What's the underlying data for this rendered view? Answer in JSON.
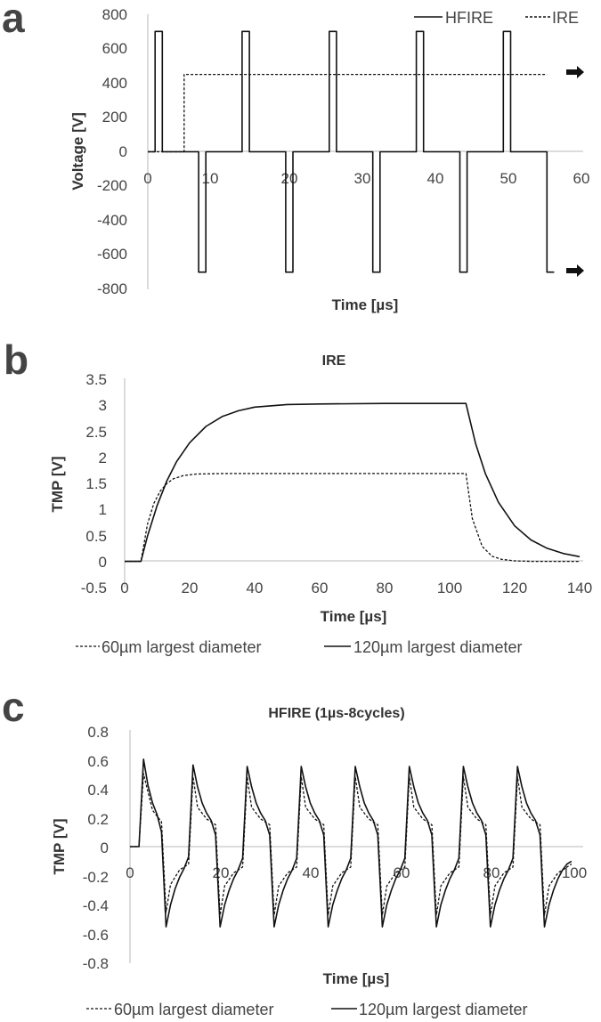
{
  "chart_data": [
    {
      "panel_label": "a",
      "type": "line",
      "title": "",
      "xlabel": "Time [µs]",
      "ylabel": "Voltage [V]",
      "xlim": [
        0,
        60
      ],
      "ylim": [
        -800,
        800
      ],
      "xticks": [
        0,
        10,
        20,
        30,
        40,
        50,
        60
      ],
      "yticks": [
        -800,
        -600,
        -400,
        -200,
        0,
        200,
        400,
        600,
        800
      ],
      "legend_position": "top-right",
      "series": [
        {
          "name": "HFIRE",
          "style": "solid",
          "x": [
            0,
            1,
            1,
            2,
            2,
            7,
            7,
            8,
            8,
            13,
            13,
            14,
            14,
            19,
            19,
            20,
            20,
            25,
            25,
            26,
            26,
            31,
            31,
            32,
            32,
            37,
            37,
            38,
            38,
            43,
            43,
            44,
            44,
            49,
            49,
            50,
            50,
            55,
            55,
            56
          ],
          "y": [
            0,
            0,
            700,
            700,
            0,
            0,
            -700,
            -700,
            0,
            0,
            700,
            700,
            0,
            0,
            -700,
            -700,
            0,
            0,
            700,
            700,
            0,
            0,
            -700,
            -700,
            0,
            0,
            700,
            700,
            0,
            0,
            -700,
            -700,
            0,
            0,
            700,
            700,
            0,
            0,
            -700,
            -700
          ]
        },
        {
          "name": "IRE",
          "style": "dashed",
          "x": [
            0,
            5,
            5,
            55
          ],
          "y": [
            0,
            0,
            450,
            450
          ]
        }
      ],
      "markers": [
        {
          "name": "right-arrow",
          "y": 450
        },
        {
          "name": "right-arrow",
          "y": -700
        }
      ]
    },
    {
      "panel_label": "b",
      "type": "line",
      "title": "IRE",
      "xlabel": "Time [µs]",
      "ylabel": "TMP [V]",
      "xlim": [
        0,
        140
      ],
      "ylim": [
        -0.5,
        3.5
      ],
      "xticks": [
        0,
        20,
        40,
        60,
        80,
        100,
        120,
        140
      ],
      "yticks": [
        -0.5,
        0,
        0.5,
        1,
        1.5,
        2,
        2.5,
        3,
        3.5
      ],
      "legend_position": "bottom",
      "series": [
        {
          "name": "60µm largest diameter",
          "style": "dashed",
          "x": [
            0,
            5,
            7,
            9,
            11,
            13,
            15,
            18,
            22,
            30,
            50,
            80,
            105,
            107,
            110,
            113,
            116,
            120,
            125,
            140
          ],
          "y": [
            0,
            0,
            0.71,
            1.11,
            1.35,
            1.49,
            1.58,
            1.64,
            1.67,
            1.68,
            1.68,
            1.68,
            1.68,
            0.82,
            0.29,
            0.1,
            0.04,
            0.01,
            0,
            0
          ]
        },
        {
          "name": "120µm largest diameter",
          "style": "solid",
          "x": [
            0,
            5,
            7,
            10,
            13,
            16,
            20,
            25,
            30,
            35,
            40,
            50,
            60,
            80,
            105,
            108,
            111,
            115,
            120,
            125,
            130,
            135,
            140
          ],
          "y": [
            0,
            0,
            0.48,
            1.07,
            1.54,
            1.91,
            2.27,
            2.58,
            2.77,
            2.88,
            2.95,
            3.0,
            3.01,
            3.02,
            3.02,
            2.25,
            1.68,
            1.13,
            0.68,
            0.41,
            0.25,
            0.15,
            0.09
          ]
        }
      ]
    },
    {
      "panel_label": "c",
      "type": "line",
      "title": "HFIRE (1µs-8cycles)",
      "xlabel": "Time [µs]",
      "ylabel": "TMP [V]",
      "xlim": [
        0,
        100
      ],
      "ylim": [
        -0.8,
        0.8
      ],
      "xticks": [
        0,
        20,
        40,
        60,
        80,
        100
      ],
      "yticks": [
        -0.8,
        -0.6,
        -0.4,
        -0.2,
        0,
        0.2,
        0.4,
        0.6,
        0.8
      ],
      "legend_position": "bottom",
      "pulse_period": 12,
      "cycles": 8,
      "series": [
        {
          "name": "60µm largest diameter",
          "style": "dashed",
          "x": [
            0,
            2,
            3,
            5,
            7,
            8,
            9,
            11,
            13,
            14,
            15,
            17,
            19,
            20,
            21,
            23,
            25,
            26,
            27,
            29,
            31,
            32,
            33,
            35,
            37,
            38,
            39,
            41,
            43,
            44,
            45,
            47,
            49,
            50,
            51,
            53,
            55,
            56,
            57,
            59,
            61,
            62,
            63,
            65,
            67,
            68,
            69,
            71,
            73,
            74,
            75,
            77,
            79,
            80,
            81,
            83,
            85,
            86,
            87,
            89,
            91,
            92,
            93,
            95,
            97,
            98
          ],
          "y": [
            0,
            0,
            0.5,
            0.25,
            0.17,
            -0.45,
            -0.26,
            -0.16,
            -0.12,
            0.48,
            0.27,
            0.19,
            0.15,
            -0.47,
            -0.27,
            -0.18,
            -0.14,
            0.48,
            0.27,
            0.19,
            0.15,
            -0.47,
            -0.27,
            -0.18,
            -0.14,
            0.48,
            0.27,
            0.19,
            0.15,
            -0.47,
            -0.27,
            -0.18,
            -0.14,
            0.48,
            0.27,
            0.19,
            0.15,
            -0.47,
            -0.27,
            -0.18,
            -0.14,
            0.48,
            0.27,
            0.19,
            0.15,
            -0.47,
            -0.27,
            -0.18,
            -0.14,
            0.48,
            0.27,
            0.19,
            0.15,
            -0.47,
            -0.27,
            -0.18,
            -0.14,
            0.48,
            0.27,
            0.19,
            0.15,
            -0.47,
            -0.27,
            -0.18,
            -0.14,
            -0.12
          ]
        },
        {
          "name": "120µm largest diameter",
          "style": "solid",
          "x": [
            0,
            2,
            3,
            4,
            5,
            6,
            7,
            8,
            9,
            10,
            11,
            12,
            13,
            14,
            15,
            16,
            17,
            18,
            19,
            20,
            21,
            22,
            23,
            24,
            25,
            26,
            27,
            28,
            29,
            30,
            31,
            32,
            33,
            34,
            35,
            36,
            37,
            38,
            39,
            40,
            41,
            42,
            43,
            44,
            45,
            46,
            47,
            48,
            49,
            50,
            51,
            52,
            53,
            54,
            55,
            56,
            57,
            58,
            59,
            60,
            61,
            62,
            63,
            64,
            65,
            66,
            67,
            68,
            69,
            70,
            71,
            72,
            73,
            74,
            75,
            76,
            77,
            78,
            79,
            80,
            81,
            82,
            83,
            84,
            85,
            86,
            87,
            88,
            89,
            90,
            91,
            92,
            93,
            94,
            95,
            96,
            97,
            98
          ],
          "y": [
            0,
            0,
            0.6,
            0.42,
            0.3,
            0.22,
            0.1,
            -0.55,
            -0.4,
            -0.29,
            -0.21,
            -0.15,
            -0.07,
            0.56,
            0.41,
            0.3,
            0.23,
            0.18,
            0.08,
            -0.55,
            -0.4,
            -0.3,
            -0.22,
            -0.16,
            -0.08,
            0.55,
            0.41,
            0.3,
            0.23,
            0.18,
            0.08,
            -0.55,
            -0.4,
            -0.3,
            -0.22,
            -0.16,
            -0.08,
            0.55,
            0.41,
            0.3,
            0.23,
            0.18,
            0.08,
            -0.55,
            -0.4,
            -0.3,
            -0.22,
            -0.16,
            -0.08,
            0.55,
            0.41,
            0.3,
            0.23,
            0.18,
            0.08,
            -0.55,
            -0.4,
            -0.3,
            -0.22,
            -0.16,
            -0.08,
            0.55,
            0.41,
            0.3,
            0.23,
            0.18,
            0.08,
            -0.55,
            -0.4,
            -0.3,
            -0.22,
            -0.16,
            -0.08,
            0.55,
            0.41,
            0.3,
            0.23,
            0.18,
            0.08,
            -0.55,
            -0.4,
            -0.3,
            -0.22,
            -0.16,
            -0.08,
            0.55,
            0.41,
            0.3,
            0.23,
            0.18,
            0.08,
            -0.55,
            -0.4,
            -0.3,
            -0.22,
            -0.16,
            -0.12,
            -0.1
          ]
        }
      ]
    }
  ],
  "style": {
    "line_color": "#111111",
    "axis_color": "#c8c8c8",
    "text_color": "#333333"
  }
}
